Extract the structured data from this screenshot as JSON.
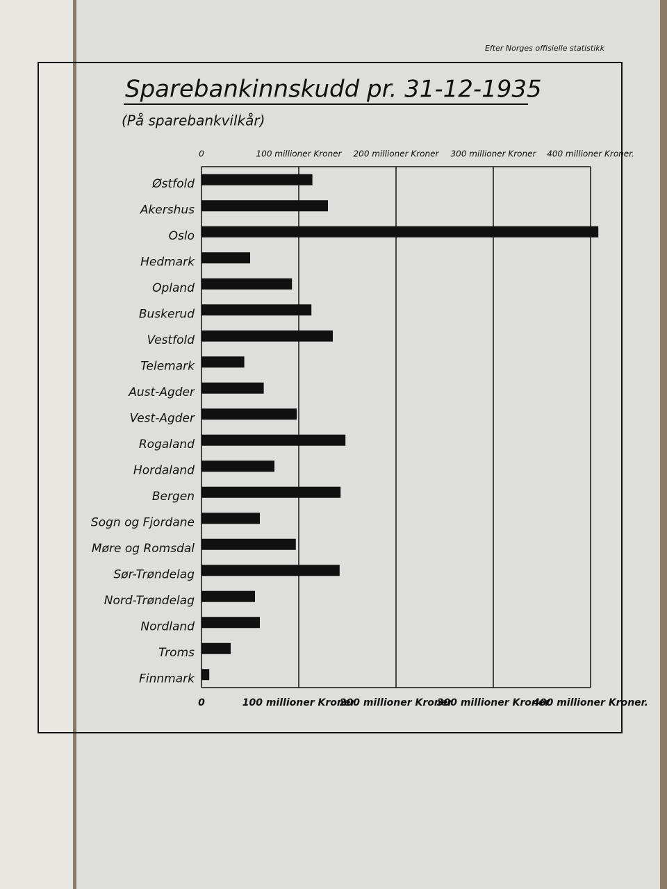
{
  "chart_data": {
    "type": "barh",
    "source": "Efter Norges offisielle statistikk",
    "title": "Sparebankinnskudd pr. 31-12-1935",
    "subtitle": "(På sparebankvilkår)",
    "categories": [
      "Østfold",
      "Akershus",
      "Oslo",
      "Hedmark",
      "Opland",
      "Buskerud",
      "Vestfold",
      "Telemark",
      "Aust-Agder",
      "Vest-Agder",
      "Rogaland",
      "Hordaland",
      "Bergen",
      "Sogn og Fjordane",
      "Møre og Romsdal",
      "Sør-Trøndelag",
      "Nord-Trøndelag",
      "Nordland",
      "Troms",
      "Finnmark"
    ],
    "values": [
      114,
      130,
      408,
      50,
      93,
      113,
      135,
      44,
      64,
      98,
      148,
      75,
      143,
      60,
      97,
      142,
      55,
      60,
      30,
      8
    ],
    "color": "#111111",
    "xlim": [
      0,
      400
    ],
    "xticks": [
      0,
      {
        "value": 100,
        "label": "100 millioner Kroner"
      },
      {
        "value": 200,
        "label": "200 millioner Kroner"
      },
      {
        "value": 300,
        "label": "300 millioner Kroner"
      },
      {
        "value": 400,
        "label": "400 millioner Kroner."
      }
    ],
    "grid": true
  }
}
